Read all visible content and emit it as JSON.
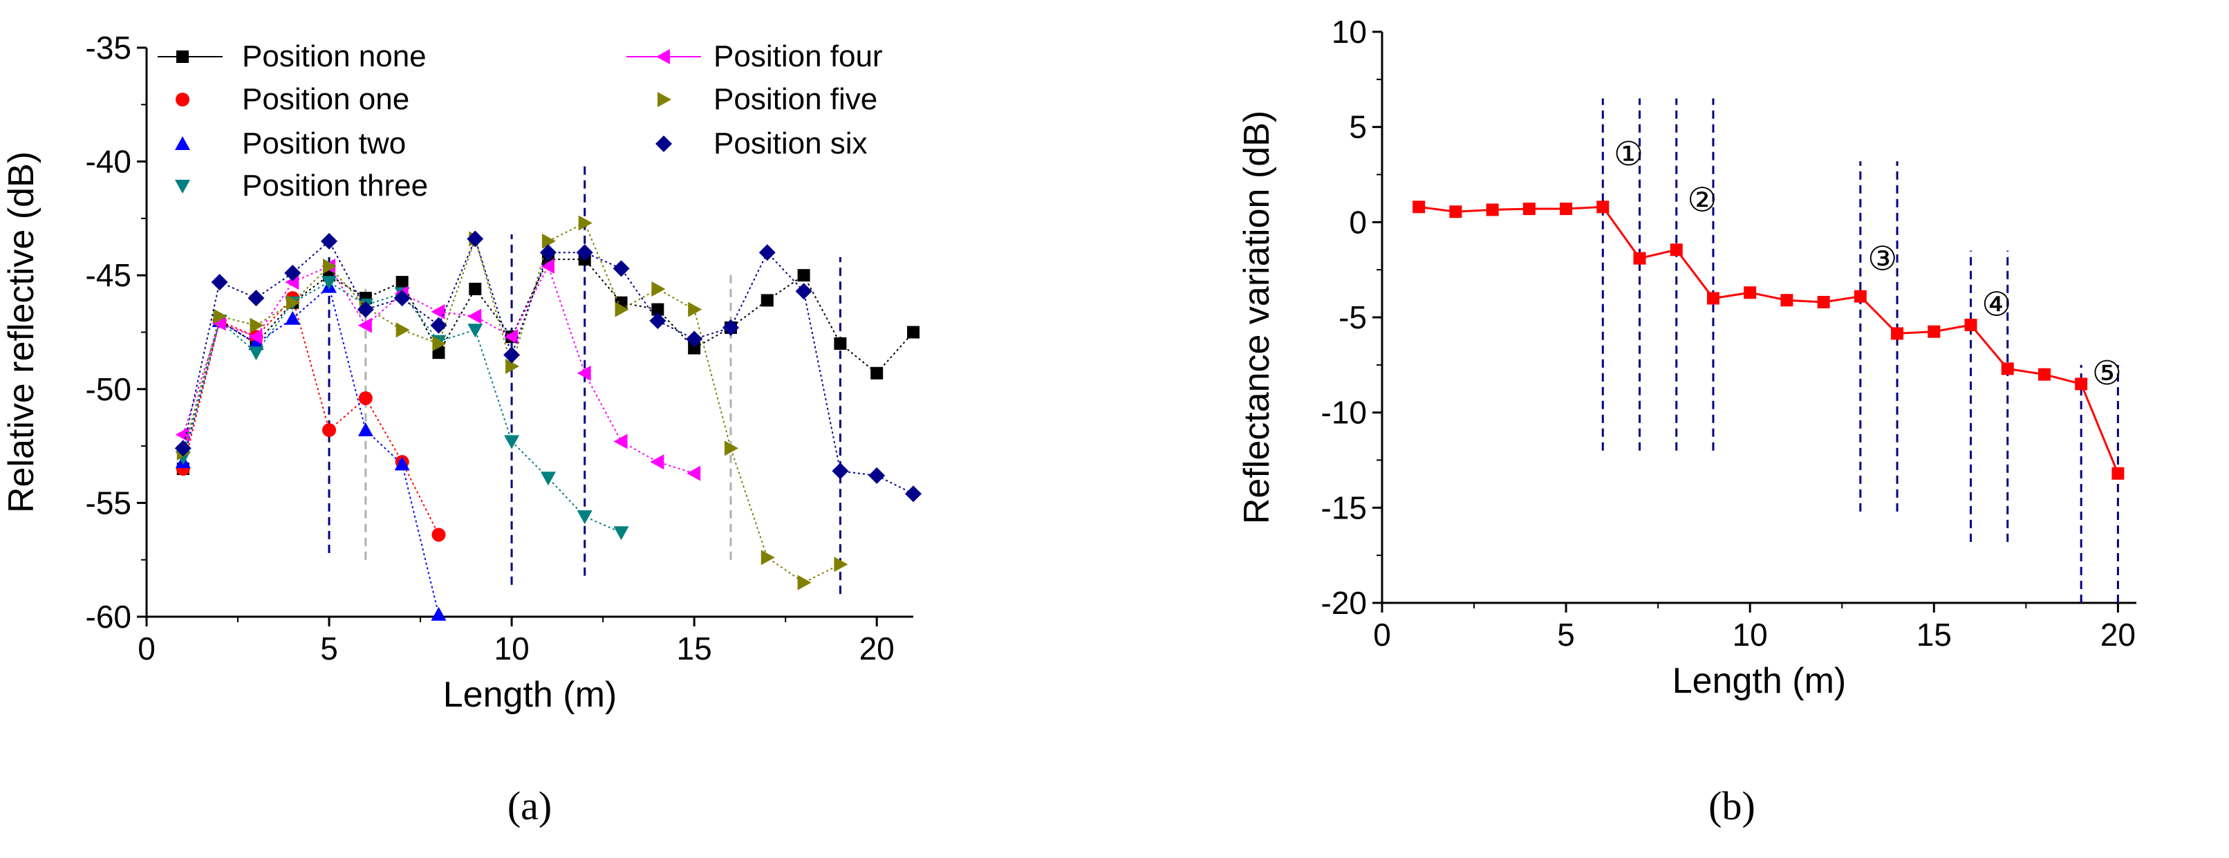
{
  "chart_data": [
    {
      "type": "line",
      "panel": "a",
      "caption": "(a)",
      "xlabel": "Length (m)",
      "ylabel": "Relative reflective (dB)",
      "xlim": [
        0,
        21
      ],
      "ylim": [
        -60,
        -35
      ],
      "xticks": [
        0,
        5,
        10,
        15,
        20
      ],
      "yticks": [
        -60,
        -55,
        -50,
        -45,
        -40,
        -35
      ],
      "grid": false,
      "legend_position": "top",
      "series": [
        {
          "name": "Position none",
          "marker": "square",
          "color": "#000000",
          "x": [
            1,
            2,
            3,
            4,
            5,
            6,
            7,
            8,
            9,
            10,
            11,
            12,
            13,
            14,
            15,
            16,
            17,
            18,
            19,
            20,
            21
          ],
          "y": [
            -53.5,
            -47,
            -48,
            -46.2,
            -45,
            -46,
            -45.3,
            -48.4,
            -45.6,
            -47.7,
            -44.3,
            -44.3,
            -46.2,
            -46.5,
            -48.2,
            -47.3,
            -46.1,
            -45,
            -48,
            -49.3,
            -47.5
          ]
        },
        {
          "name": "Position one",
          "marker": "circle",
          "color": "#ff0000",
          "x": [
            1,
            2,
            3,
            4,
            5,
            6,
            7,
            8
          ],
          "y": [
            -53.5,
            -47,
            -47.7,
            -46,
            -51.8,
            -50.4,
            -53.2,
            -56.4
          ]
        },
        {
          "name": "Position two",
          "marker": "triangle-up",
          "color": "#0000ff",
          "x": [
            1,
            2,
            3,
            4,
            5,
            6,
            7,
            8
          ],
          "y": [
            -53.2,
            -47,
            -48,
            -46.9,
            -45.5,
            -51.8,
            -53.3,
            -59.9
          ]
        },
        {
          "name": "Position three",
          "marker": "triangle-down",
          "color": "#008080",
          "x": [
            1,
            2,
            3,
            4,
            5,
            6,
            7,
            8,
            9,
            10,
            11,
            12,
            13
          ],
          "y": [
            -53,
            -47,
            -48.4,
            -46.2,
            -45.3,
            -46.3,
            -45.8,
            -47.9,
            -47.4,
            -52.3,
            -53.9,
            -55.6,
            -56.3
          ]
        },
        {
          "name": "Position four",
          "marker": "triangle-left",
          "color": "#ff00ff",
          "x": [
            1,
            2,
            3,
            4,
            5,
            6,
            7,
            8,
            9,
            10,
            11,
            12,
            13,
            14,
            15
          ],
          "y": [
            -52,
            -47.1,
            -47.7,
            -45.3,
            -44.6,
            -47.2,
            -45.8,
            -46.6,
            -46.8,
            -47.7,
            -44.6,
            -49.3,
            -52.3,
            -53.2,
            -53.7
          ]
        },
        {
          "name": "Position five",
          "marker": "triangle-right",
          "color": "#808000",
          "x": [
            1,
            2,
            3,
            4,
            5,
            6,
            7,
            8,
            9,
            10,
            11,
            12,
            13,
            14,
            15,
            16,
            17,
            18,
            19
          ],
          "y": [
            -52.8,
            -46.8,
            -47.2,
            -46.2,
            -44.6,
            -46.4,
            -47.4,
            -48,
            -43.4,
            -49,
            -43.5,
            -42.7,
            -46.5,
            -45.6,
            -46.5,
            -52.6,
            -57.4,
            -58.5,
            -57.7
          ]
        },
        {
          "name": "Position six",
          "marker": "diamond",
          "color": "#00008b",
          "x": [
            1,
            2,
            3,
            4,
            5,
            6,
            7,
            8,
            9,
            10,
            11,
            12,
            13,
            14,
            15,
            16,
            17,
            18,
            19,
            20,
            21
          ],
          "y": [
            -52.6,
            -45.3,
            -46,
            -44.9,
            -43.5,
            -46.5,
            -46,
            -47.2,
            -43.4,
            -48.5,
            -44,
            -44,
            -44.7,
            -47,
            -47.8,
            -47.3,
            -44,
            -45.7,
            -53.6,
            -53.8,
            -54.6
          ]
        }
      ],
      "vlines": [
        {
          "x": 5,
          "y1": -57.2,
          "y2": -44.2,
          "color": "#000080"
        },
        {
          "x": 6,
          "y1": -57.5,
          "y2": -45.5,
          "color": "#b0b0b0"
        },
        {
          "x": 10,
          "y1": -58.6,
          "y2": -43.2,
          "color": "#000080"
        },
        {
          "x": 12,
          "y1": -58.2,
          "y2": -40.2,
          "color": "#000080"
        },
        {
          "x": 16,
          "y1": -57.5,
          "y2": -44.8,
          "color": "#b0b0b0"
        },
        {
          "x": 19,
          "y1": -59,
          "y2": -44.2,
          "color": "#000080"
        }
      ]
    },
    {
      "type": "line",
      "panel": "b",
      "caption": "(b)",
      "xlabel": "Length (m)",
      "ylabel": "Reflectance variation (dB)",
      "xlim": [
        0,
        20.5
      ],
      "ylim": [
        -20,
        10
      ],
      "xticks": [
        0,
        5,
        10,
        15,
        20
      ],
      "yticks": [
        -20,
        -15,
        -10,
        -5,
        0,
        5,
        10
      ],
      "grid": false,
      "series": [
        {
          "name": "Reflectance variation",
          "marker": "square",
          "color": "#ff0000",
          "x": [
            1,
            2,
            3,
            4,
            5,
            6,
            7,
            8,
            9,
            10,
            11,
            12,
            13,
            14,
            15,
            16,
            17,
            18,
            19,
            20
          ],
          "y": [
            0.8,
            0.55,
            0.65,
            0.7,
            0.7,
            0.8,
            -1.9,
            -1.45,
            -4,
            -3.7,
            -4.1,
            -4.2,
            -3.9,
            -5.85,
            -5.75,
            -5.4,
            -7.7,
            -8,
            -8.5,
            -13.2
          ]
        }
      ],
      "vlines": [
        {
          "x": 6,
          "y1": -12,
          "y2": 6.5,
          "color": "#000080"
        },
        {
          "x": 7,
          "y1": -12,
          "y2": 6.5,
          "color": "#000080"
        },
        {
          "x": 8,
          "y1": -12,
          "y2": 6.5,
          "color": "#000080"
        },
        {
          "x": 9,
          "y1": -12,
          "y2": 6.5,
          "color": "#000080"
        },
        {
          "x": 13,
          "y1": -15.2,
          "y2": 3.2,
          "color": "#000080"
        },
        {
          "x": 14,
          "y1": -15.2,
          "y2": 3.2,
          "color": "#000080"
        },
        {
          "x": 16,
          "y1": -16.8,
          "y2": -1.5,
          "color": "#000080"
        },
        {
          "x": 17,
          "y1": -16.8,
          "y2": -1.5,
          "color": "#000080"
        },
        {
          "x": 19,
          "y1": -20,
          "y2": -7.5,
          "color": "#000080"
        },
        {
          "x": 20,
          "y1": -20,
          "y2": -7.5,
          "color": "#000080"
        }
      ],
      "annotations": [
        {
          "text": "①",
          "x": 6.7,
          "y": 3.6
        },
        {
          "text": "②",
          "x": 8.7,
          "y": 1.2
        },
        {
          "text": "③",
          "x": 13.6,
          "y": -1.9
        },
        {
          "text": "④",
          "x": 16.7,
          "y": -4.3
        },
        {
          "text": "⑤",
          "x": 19.7,
          "y": -7.9
        }
      ]
    }
  ]
}
